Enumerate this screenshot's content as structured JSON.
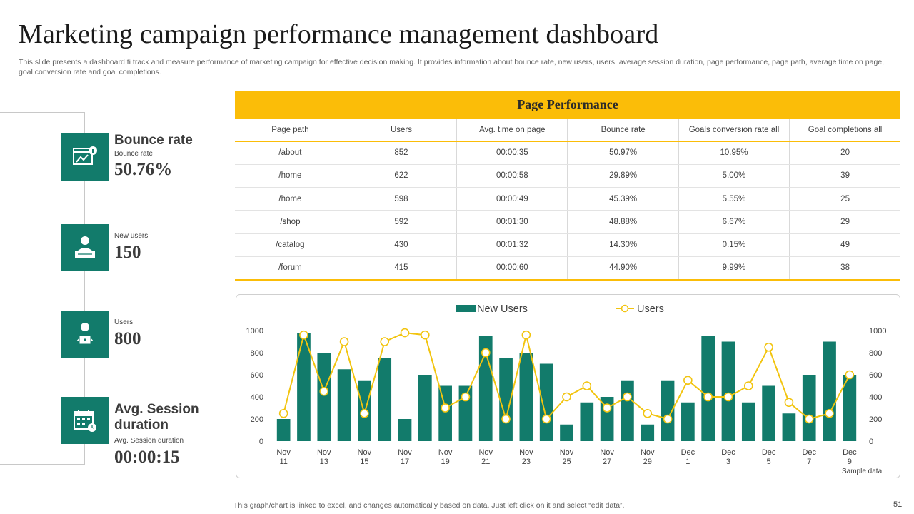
{
  "title": "Marketing campaign performance management dashboard",
  "subtitle": "This slide presents a dashboard ti track and measure performance of marketing campaign for effective decision making. It provides information about bounce rate, new users, users, average session duration, page performance, page path, average time on page, goal conversion rate and goal completions.",
  "kpis": {
    "bounce": {
      "heading": "Bounce rate",
      "label": "Bounce rate",
      "value": "50.76%"
    },
    "new_users": {
      "label": "New users",
      "value": "150"
    },
    "users": {
      "label": "Users",
      "value": "800"
    },
    "session": {
      "heading": "Avg. Session duration",
      "label": "Avg. Session duration",
      "value": "00:00:15"
    }
  },
  "table": {
    "title": "Page Performance",
    "headers": [
      "Page path",
      "Users",
      "Avg. time on page",
      "Bounce rate",
      "Goals conversion rate all",
      "Goal completions all"
    ],
    "rows": [
      [
        "/about",
        "852",
        "00:00:35",
        "50.97%",
        "10.95%",
        "20"
      ],
      [
        "/home",
        "622",
        "00:00:58",
        "29.89%",
        "5.00%",
        "39"
      ],
      [
        "/home",
        "598",
        "00:00:49",
        "45.39%",
        "5.55%",
        "25"
      ],
      [
        "/shop",
        "592",
        "00:01:30",
        "48.88%",
        "6.67%",
        "29"
      ],
      [
        "/catalog",
        "430",
        "00:01:32",
        "14.30%",
        "0.15%",
        "49"
      ],
      [
        "/forum",
        "415",
        "00:00:60",
        "44.90%",
        "9.99%",
        "38"
      ]
    ]
  },
  "chart_data": {
    "type": "bar",
    "categories": [
      "Nov 11",
      "Nov 12",
      "Nov 13",
      "Nov 14",
      "Nov 15",
      "Nov 16",
      "Nov 17",
      "Nov 18",
      "Nov 19",
      "Nov 20",
      "Nov 21",
      "Nov 22",
      "Nov 23",
      "Nov 24",
      "Nov 25",
      "Nov 26",
      "Nov 27",
      "Nov 28",
      "Nov 29",
      "Nov 30",
      "Dec 1",
      "Dec 2",
      "Dec 3",
      "Dec 4",
      "Dec 5",
      "Dec 6",
      "Dec 7",
      "Dec 8",
      "Dec 9"
    ],
    "tick_labels": [
      [
        "Nov",
        "11"
      ],
      [
        "Nov",
        "13"
      ],
      [
        "Nov",
        "15"
      ],
      [
        "Nov",
        "17"
      ],
      [
        "Nov",
        "19"
      ],
      [
        "Nov",
        "21"
      ],
      [
        "Nov",
        "23"
      ],
      [
        "Nov",
        "25"
      ],
      [
        "Nov",
        "27"
      ],
      [
        "Nov",
        "29"
      ],
      [
        "Dec",
        "1"
      ],
      [
        "Dec",
        "3"
      ],
      [
        "Dec",
        "5"
      ],
      [
        "Dec",
        "7"
      ],
      [
        "Dec",
        "9"
      ]
    ],
    "series": [
      {
        "name": "New Users",
        "type": "bar",
        "color": "#127b6b",
        "values": [
          200,
          980,
          800,
          650,
          550,
          750,
          200,
          600,
          500,
          500,
          950,
          750,
          800,
          700,
          150,
          350,
          400,
          550,
          150,
          550,
          350,
          950,
          900,
          350,
          500,
          250,
          600,
          900,
          600
        ]
      },
      {
        "name": "Users",
        "type": "line",
        "color": "#f2c40f",
        "values": [
          250,
          960,
          450,
          900,
          250,
          900,
          980,
          960,
          300,
          400,
          800,
          200,
          960,
          200,
          400,
          500,
          300,
          400,
          250,
          200,
          550,
          400,
          400,
          500,
          850,
          350,
          200,
          250,
          600
        ]
      }
    ],
    "ylim": [
      0,
      1000
    ],
    "yticks": [
      0,
      200,
      400,
      600,
      800,
      1000
    ],
    "annotation": "Sample data"
  },
  "footer": "This graph/chart is linked to excel,  and changes automatically based on data. Just left click on it and select “edit data”.",
  "page_number": "51"
}
